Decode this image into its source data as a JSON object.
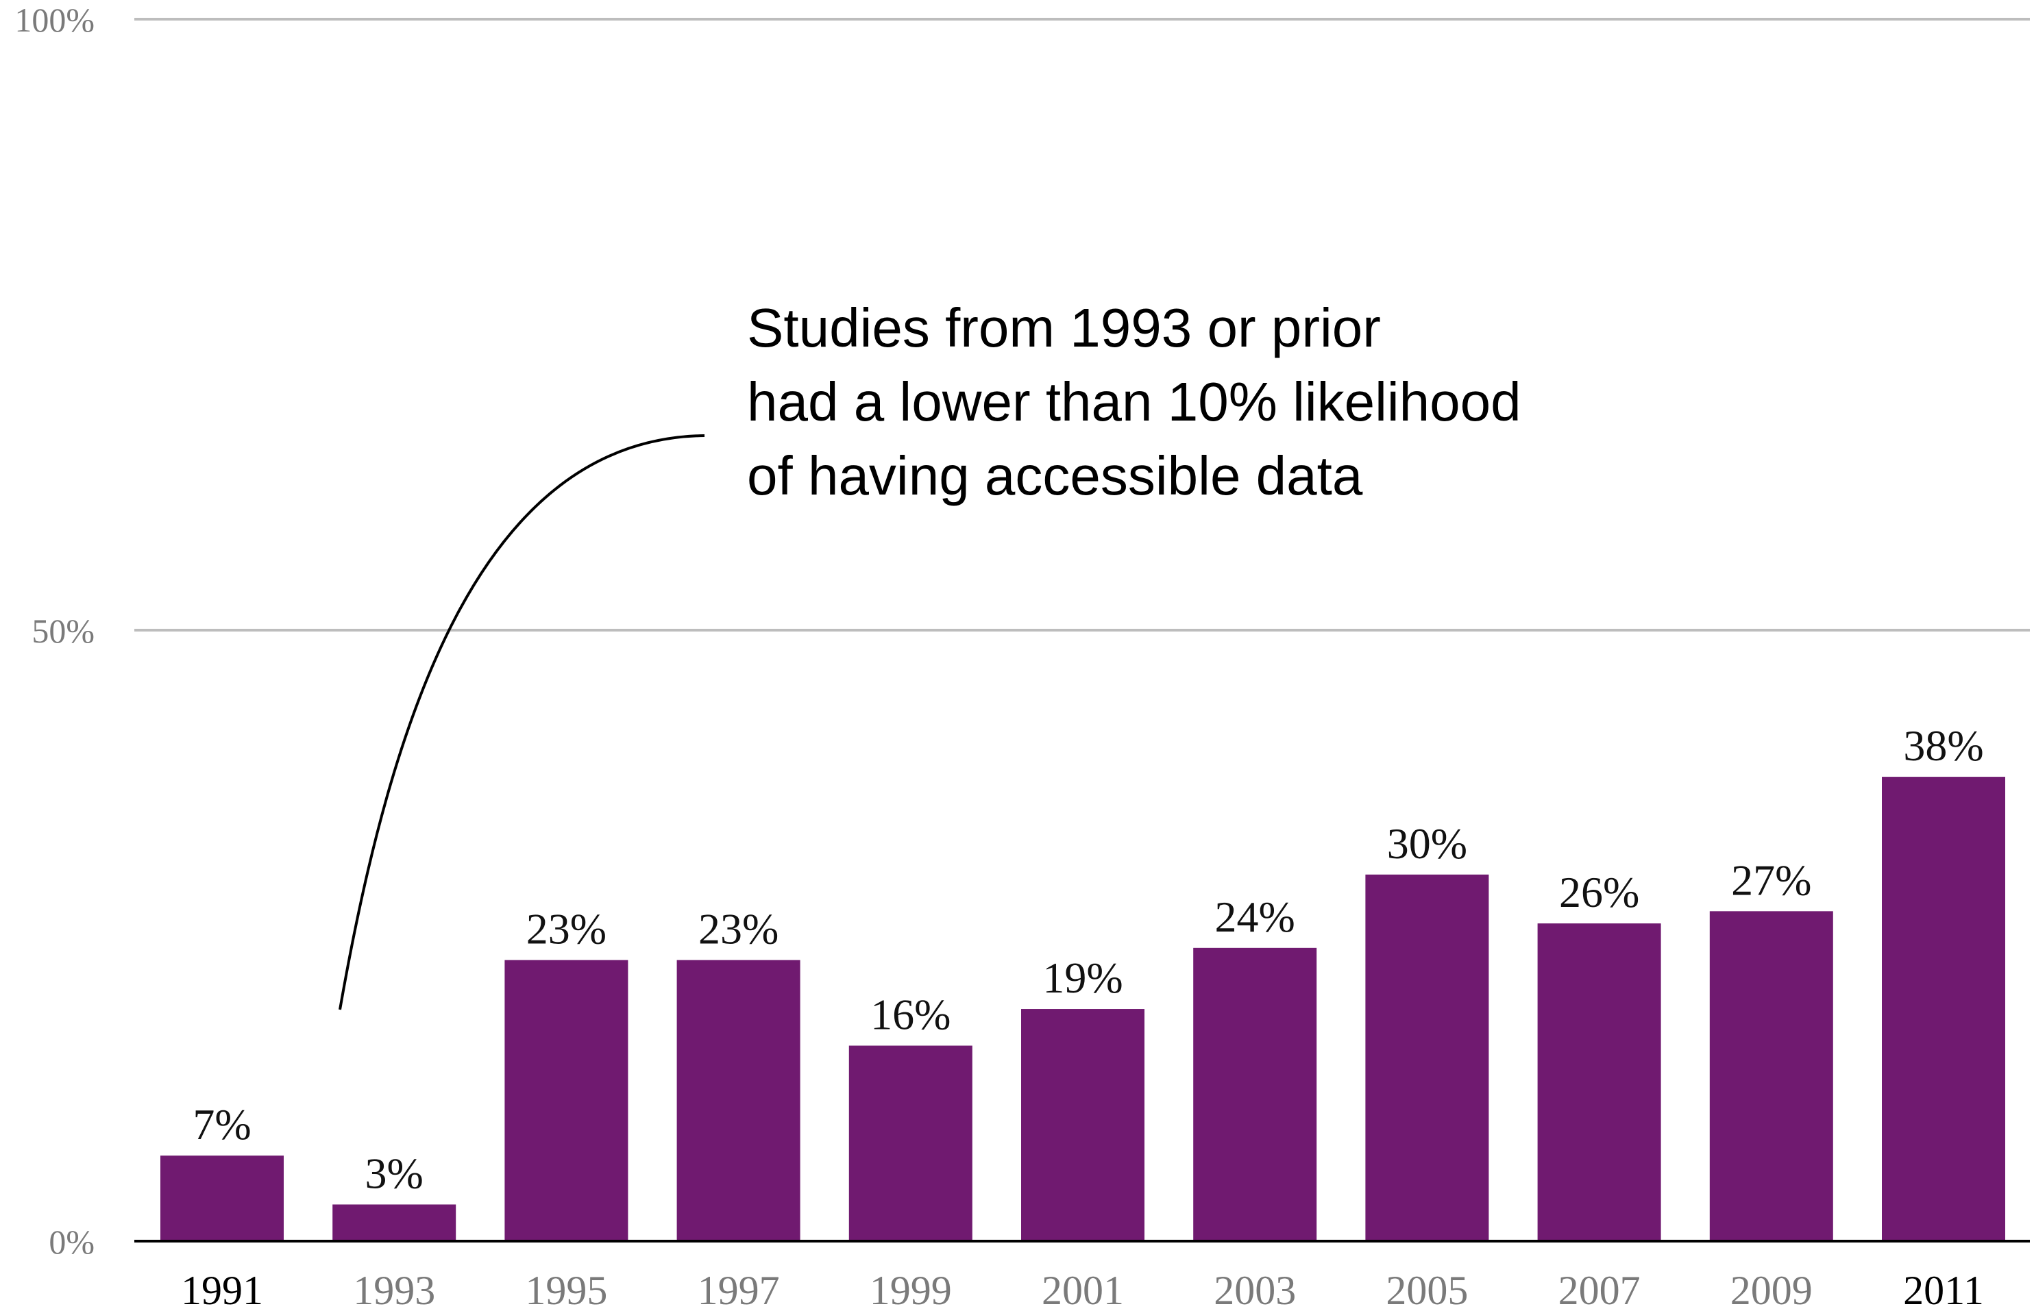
{
  "chart_data": {
    "type": "bar",
    "categories": [
      "1991",
      "1993",
      "1995",
      "1997",
      "1999",
      "2001",
      "2003",
      "2005",
      "2007",
      "2009",
      "2011"
    ],
    "values": [
      7,
      3,
      23,
      23,
      16,
      19,
      24,
      30,
      26,
      27,
      38
    ],
    "value_labels": [
      "7%",
      "3%",
      "23%",
      "23%",
      "16%",
      "19%",
      "24%",
      "30%",
      "26%",
      "27%",
      "38%"
    ],
    "highlighted_categories": [
      "1991",
      "2011"
    ],
    "ylim": [
      0,
      100
    ],
    "y_ticks": [
      {
        "value": 0,
        "label": "0%"
      },
      {
        "value": 50,
        "label": "50%"
      },
      {
        "value": 100,
        "label": "100%"
      }
    ],
    "grid": true,
    "annotation": {
      "lines": [
        "Studies from 1993 or prior",
        "had a lower than 10% likelihood",
        "of having accessible data"
      ],
      "points_to": "1993"
    },
    "colors": {
      "bar": "#701a70",
      "gridline": "#bdbdbd",
      "axis": "#000000",
      "label_highlight": "#000000",
      "label_muted": "#7a7a7a"
    }
  }
}
